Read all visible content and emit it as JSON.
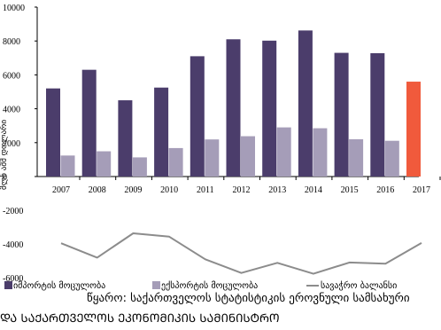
{
  "chart_data": {
    "type": "bar",
    "categories": [
      "2007",
      "2008",
      "2009",
      "2010",
      "2011",
      "2012",
      "2013",
      "2014",
      "2015",
      "2016",
      "2017"
    ],
    "series": [
      {
        "name": "იმპორტის მოცულობა",
        "type": "bar",
        "color": "#4b3d6b",
        "values": [
          5200,
          6300,
          4500,
          5250,
          7100,
          8100,
          8020,
          8620,
          7300,
          7280,
          5600
        ]
      },
      {
        "name": "ექსპორტის მოცულობა",
        "type": "bar",
        "color": "#a59db8",
        "values": [
          1240,
          1490,
          1130,
          1680,
          2190,
          2380,
          2900,
          2850,
          2200,
          2110,
          null
        ]
      },
      {
        "name": "სავაჭრო ბალანსი",
        "type": "line",
        "color": "#8c8c8c",
        "values": [
          -3960,
          -4810,
          -3370,
          -3570,
          -4910,
          -5720,
          -5120,
          -5770,
          -5100,
          -5170,
          -3940
        ]
      }
    ],
    "highlight": {
      "category": "2017",
      "color": "#f05a3c"
    },
    "ylim": [
      -6000,
      10000
    ],
    "yticks": [
      10000,
      8000,
      6000,
      4000,
      2000,
      0,
      -2000,
      -4000,
      -6000
    ],
    "ylabel": "მლნ აშშ დოლარი",
    "legend_position": "bottom-left",
    "grid": false
  },
  "source_text": "წყარო: საქართველოს სტატისტიკის ეროვნული სამსახური",
  "source_text_line2": "ᲓᲐ ᲡᲐᲥᲐᲠᲗᲕᲔᲚᲝᲡ ᲔᲙᲝᲜᲝᲛᲘᲙᲘᲡ ᲡᲐᲛᲘᲜᲘᲡᲢᲠᲝ"
}
